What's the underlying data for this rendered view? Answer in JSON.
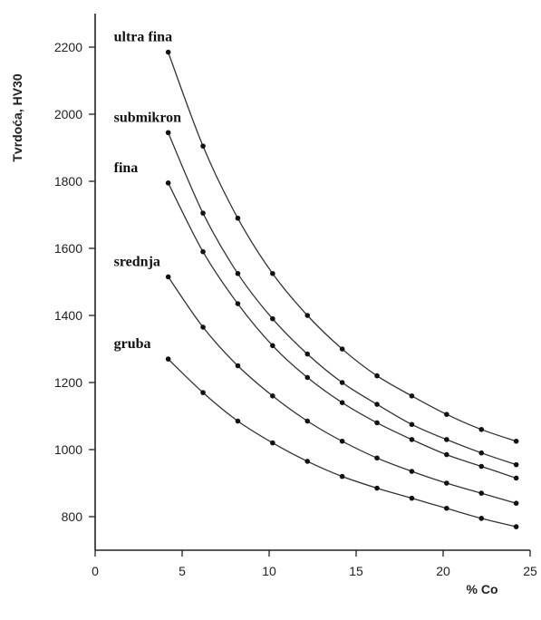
{
  "chart_data": {
    "type": "line",
    "title": "",
    "xlabel": "% Co",
    "ylabel": "Tvrdoća, HV30",
    "xlim": [
      0,
      25
    ],
    "ylim": [
      700,
      2300
    ],
    "x_ticks": [
      0,
      5,
      10,
      15,
      20,
      25
    ],
    "y_ticks": [
      800,
      1000,
      1200,
      1400,
      1600,
      1800,
      2000,
      2200
    ],
    "grid": false,
    "legend": "inline labels at curve starts",
    "x": [
      4.2,
      6.2,
      8.2,
      10.2,
      12.2,
      14.2,
      16.2,
      18.2,
      20.2,
      22.2,
      24.2
    ],
    "series": [
      {
        "name": "ultra fina",
        "values": [
          2185,
          1905,
          1690,
          1525,
          1400,
          1300,
          1220,
          1160,
          1105,
          1060,
          1025
        ]
      },
      {
        "name": "submikron",
        "values": [
          1945,
          1705,
          1525,
          1390,
          1285,
          1200,
          1135,
          1075,
          1030,
          990,
          955
        ]
      },
      {
        "name": "fina",
        "values": [
          1795,
          1590,
          1435,
          1310,
          1215,
          1140,
          1080,
          1030,
          985,
          950,
          915
        ]
      },
      {
        "name": "srednja",
        "values": [
          1515,
          1365,
          1250,
          1160,
          1085,
          1025,
          975,
          935,
          900,
          870,
          840
        ]
      },
      {
        "name": "gruba",
        "values": [
          1270,
          1170,
          1085,
          1020,
          965,
          920,
          885,
          855,
          825,
          795,
          770
        ]
      }
    ]
  }
}
